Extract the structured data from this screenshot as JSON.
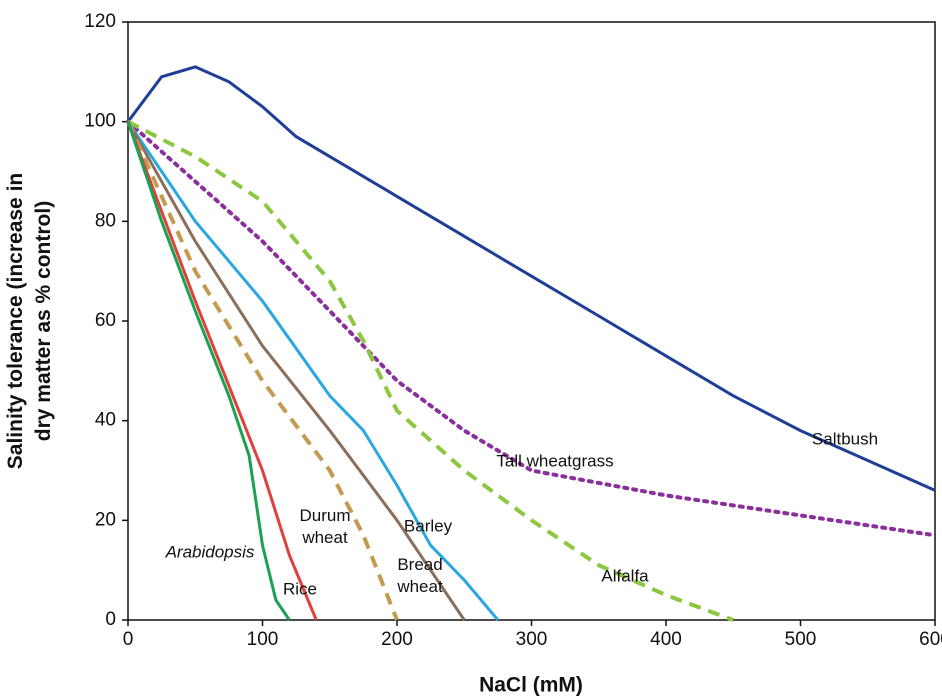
{
  "chart_data": {
    "type": "line",
    "x_label": "NaCl (mM)",
    "y_label": "Salinity tolerance (increase in dry matter as % control)",
    "xlim": [
      0,
      600
    ],
    "xticks": [
      0,
      100,
      200,
      300,
      400,
      500,
      600
    ],
    "ylim": [
      0,
      120
    ],
    "yticks": [
      0,
      20,
      40,
      60,
      80,
      100,
      120
    ],
    "series": [
      {
        "name": "Saltbush",
        "color": "#1f3e96",
        "style": "solid",
        "x": [
          0,
          25,
          50,
          75,
          100,
          125,
          150,
          200,
          250,
          300,
          350,
          400,
          450,
          500,
          550,
          600
        ],
        "values": [
          100,
          109,
          111,
          108,
          103,
          97,
          93,
          85,
          77,
          69,
          61,
          53,
          45,
          38,
          32,
          26
        ]
      },
      {
        "name": "Tall wheatgrass",
        "color": "#8b2f9c",
        "style": "dotted",
        "x": [
          0,
          50,
          100,
          150,
          200,
          250,
          300,
          400,
          500,
          600
        ],
        "values": [
          100,
          88,
          76,
          62,
          48,
          38,
          30,
          25,
          21,
          17
        ]
      },
      {
        "name": "Alfalfa",
        "color": "#8dc63f",
        "style": "dashed",
        "x": [
          0,
          50,
          100,
          150,
          175,
          200,
          250,
          300,
          350,
          400,
          450
        ],
        "values": [
          100,
          93,
          84,
          68,
          56,
          42,
          30,
          20,
          11,
          5,
          0
        ]
      },
      {
        "name": "Barley",
        "color": "#29a8e0",
        "style": "solid",
        "x": [
          0,
          50,
          100,
          150,
          175,
          200,
          225,
          250,
          275
        ],
        "values": [
          100,
          80,
          64,
          45,
          38,
          27,
          15,
          8,
          0
        ]
      },
      {
        "name": "Bread wheat",
        "color": "#8c6e5a",
        "style": "solid",
        "x": [
          0,
          50,
          100,
          150,
          200,
          225,
          250
        ],
        "values": [
          100,
          76,
          55,
          38,
          20,
          10,
          0
        ]
      },
      {
        "name": "Durum wheat",
        "color": "#c49a52",
        "style": "dashed",
        "x": [
          0,
          50,
          100,
          150,
          175,
          200
        ],
        "values": [
          100,
          70,
          48,
          30,
          17,
          0
        ]
      },
      {
        "name": "Rice",
        "color": "#e0403a",
        "style": "solid",
        "x": [
          0,
          25,
          50,
          75,
          100,
          120,
          140
        ],
        "values": [
          100,
          82,
          64,
          47,
          30,
          13,
          0
        ]
      },
      {
        "name": "Arabidopsis",
        "color": "#1aa152",
        "style": "solid",
        "x": [
          0,
          25,
          50,
          75,
          90,
          100,
          110,
          120
        ],
        "values": [
          100,
          80,
          62,
          45,
          33,
          15,
          4,
          0
        ]
      }
    ]
  }
}
